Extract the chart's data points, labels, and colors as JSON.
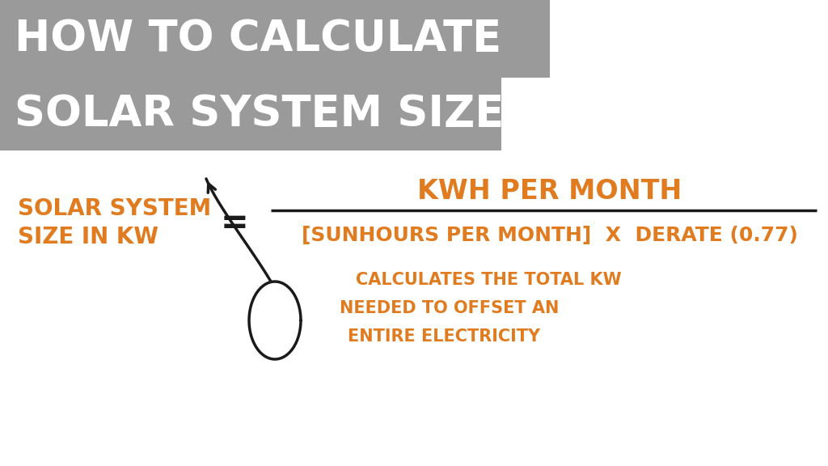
{
  "bg_color": "#ffffff",
  "header_bg_color": "#9a9a9a",
  "header_text_line1": "HOW TO CALCULATE",
  "header_text_line2": "SOLAR SYSTEM SIZE",
  "header_text_color": "#ffffff",
  "header_font_size": 38,
  "orange_color": "#e07b20",
  "black_color": "#1a1a1a",
  "lhs_line1": "SOLAR SYSTEM",
  "lhs_line2": "SIZE IN KW",
  "equals_sign": "=",
  "numerator": "KWH PER MONTH",
  "denominator": "[SUNHOURS PER MONTH]  X  DERATE (0.77)",
  "annotation_line1": "CALCULATES THE TOTAL KW",
  "annotation_line2": "NEEDED TO OFFSET AN",
  "annotation_line3": "ENTIRE ELECTRICITY",
  "formula_font_size": 20,
  "annotation_font_size": 15
}
